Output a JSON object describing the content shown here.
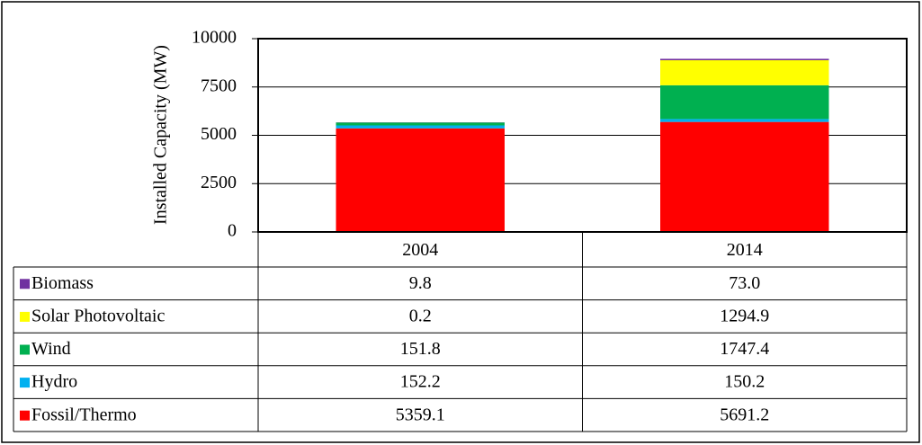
{
  "chart_data": {
    "type": "stacked_bar",
    "ylabel": "Installed Capacity (MW)",
    "categories": [
      "2004",
      "2014"
    ],
    "series": [
      {
        "name": "Biomass",
        "color": "#7030a0",
        "values": [
          9.8,
          73
        ],
        "value_labels": [
          "9.8",
          "73.0"
        ]
      },
      {
        "name": "Solar Photovoltaic",
        "color": "#ffff00",
        "values": [
          0.2,
          1294.9
        ],
        "value_labels": [
          "0.2",
          "1294.9"
        ]
      },
      {
        "name": "Wind",
        "color": "#00b050",
        "values": [
          151.8,
          1747.4
        ],
        "value_labels": [
          "151.8",
          "1747.4"
        ]
      },
      {
        "name": "Hydro",
        "color": "#00b0f0",
        "values": [
          152.2,
          150.2
        ],
        "value_labels": [
          "152.2",
          "150.2"
        ]
      },
      {
        "name": "Fossil/Thermo",
        "color": "#ff0000",
        "values": [
          5359.1,
          5691.2
        ],
        "value_labels": [
          "5359.1",
          "5691.2"
        ]
      }
    ],
    "ylim": [
      0,
      10000
    ],
    "yticks": [
      0,
      2500,
      5000,
      7500,
      10000
    ],
    "grid": true
  }
}
